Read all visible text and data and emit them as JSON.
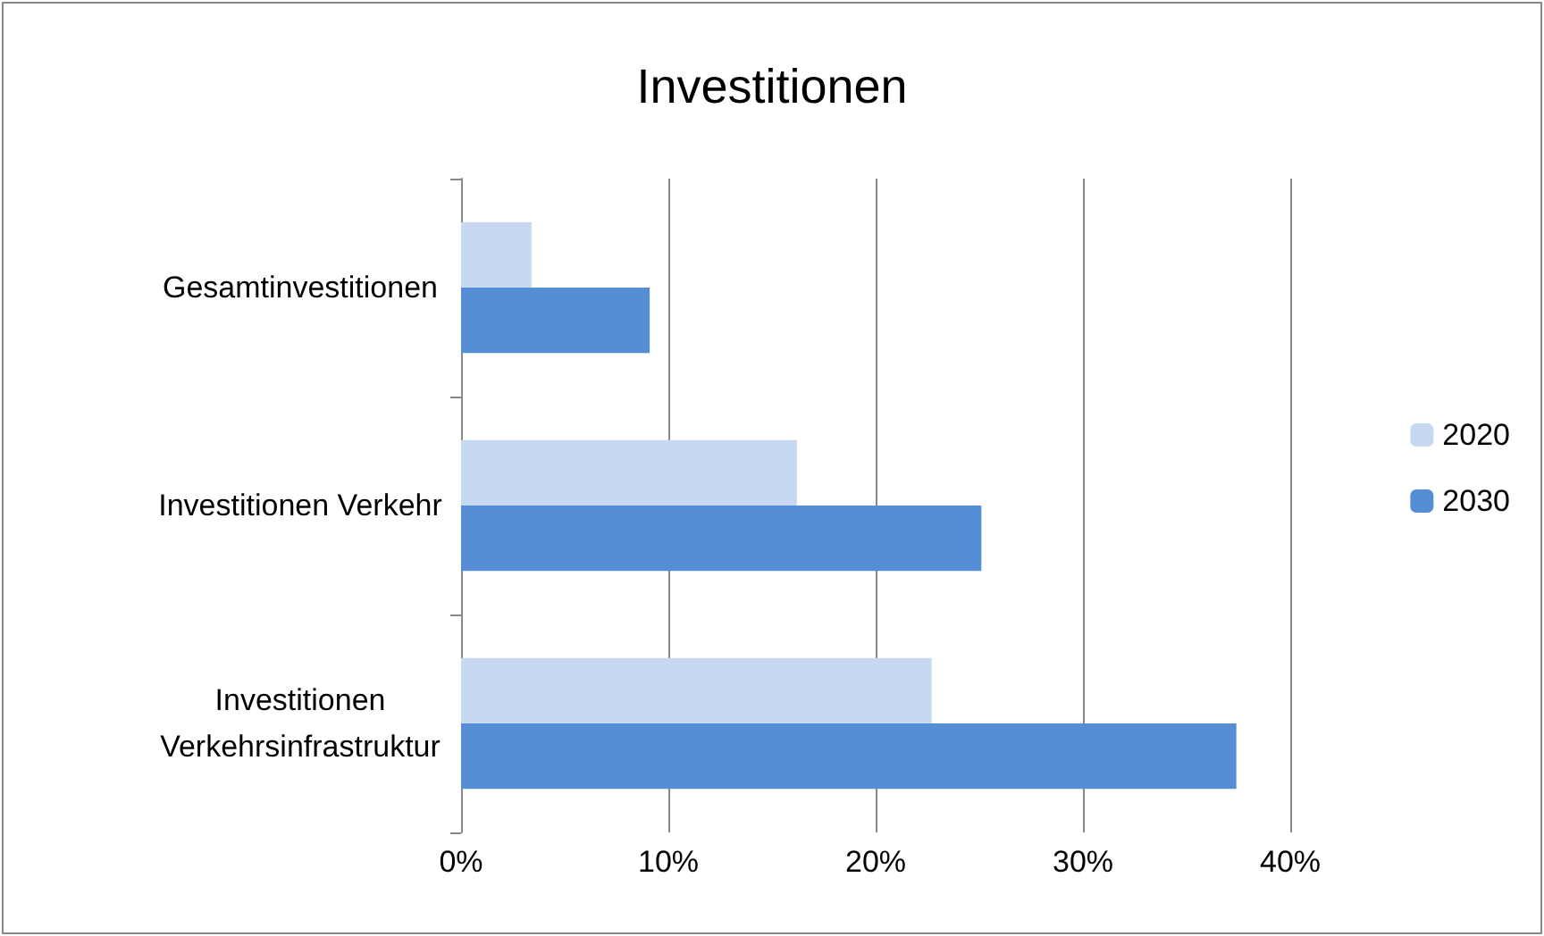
{
  "chart_data": {
    "type": "bar",
    "orientation": "horizontal",
    "title": "Investitionen",
    "categories": [
      "Gesamtinvestitionen",
      "Investitionen Verkehr",
      "Investitionen\nVerkehrsinfrastruktur"
    ],
    "series": [
      {
        "name": "2020",
        "color": "#c6d9f1",
        "values": [
          3.4,
          16.2,
          22.7
        ]
      },
      {
        "name": "2030",
        "color": "#558ed5",
        "values": [
          9.1,
          25.1,
          37.4
        ]
      }
    ],
    "xlim": [
      0,
      40
    ],
    "xticks": [
      {
        "value": 0,
        "label": "0%"
      },
      {
        "value": 10,
        "label": "10%"
      },
      {
        "value": 20,
        "label": "20%"
      },
      {
        "value": 30,
        "label": "30%"
      },
      {
        "value": 40,
        "label": "40%"
      }
    ],
    "grid": "x",
    "legend": "right"
  }
}
